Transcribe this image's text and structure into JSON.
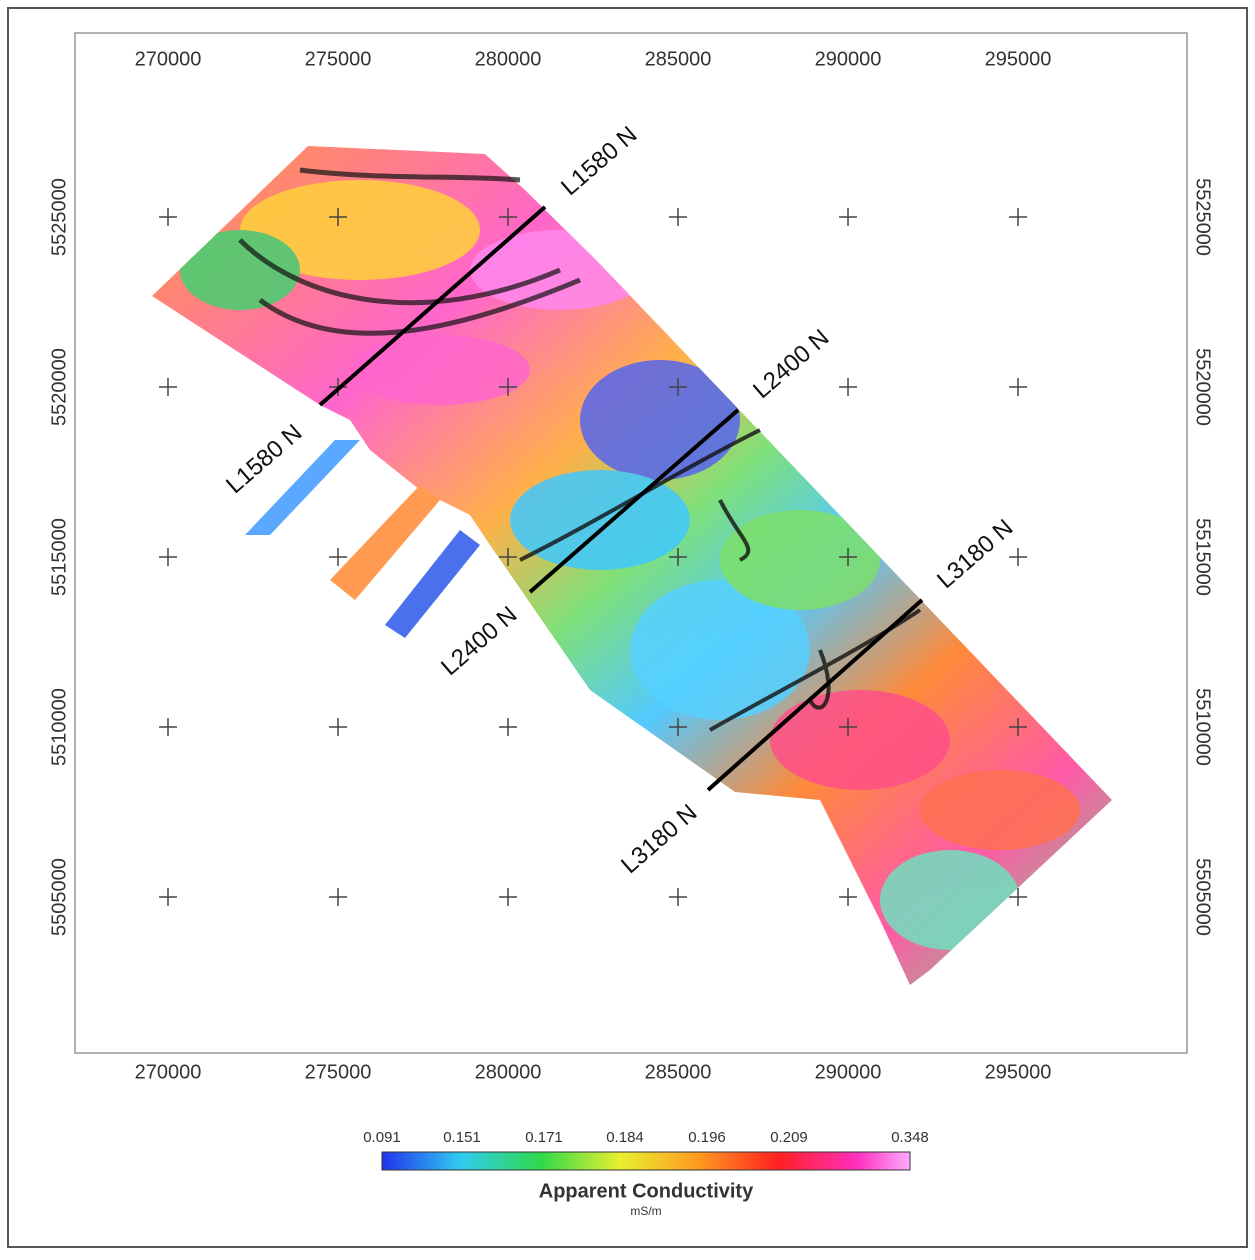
{
  "map": {
    "x_ticks": [
      270000,
      275000,
      280000,
      285000,
      290000,
      295000
    ],
    "xlim": [
      267265,
      299970
    ],
    "y_ticks": [
      5505000,
      5510000,
      5515000,
      5520000,
      5525000
    ],
    "ylim": [
      5500412,
      5530412
    ],
    "profiles": [
      {
        "label": "L1580 N"
      },
      {
        "label": "L2400 N"
      },
      {
        "label": "L3180 N"
      }
    ],
    "colorbar": {
      "labels": [
        "0.091",
        "0.151",
        "0.171",
        "0.184",
        "0.196",
        "0.209",
        "0.348"
      ],
      "title": "Apparent Conductivity",
      "unit": "mS/m"
    }
  }
}
